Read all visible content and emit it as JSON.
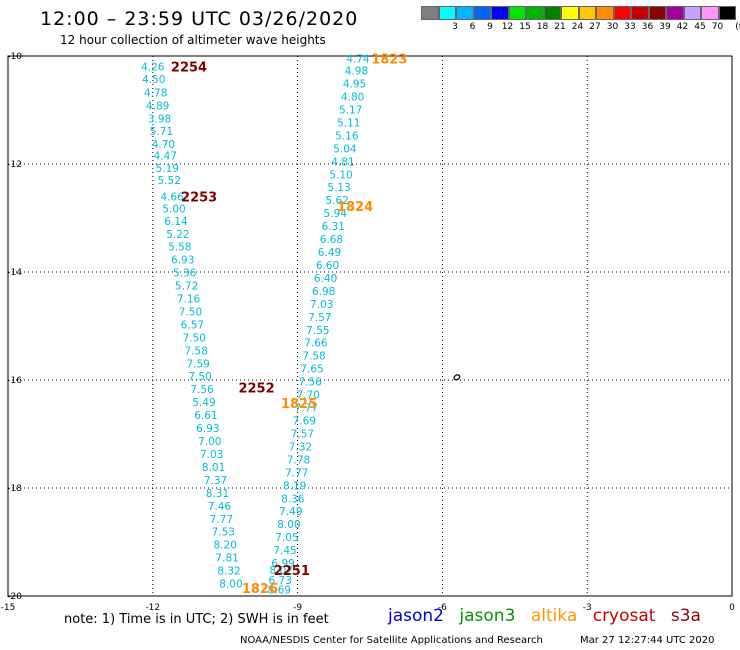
{
  "header": {
    "title": "12:00 – 23:59 UTC 03/26/2020",
    "subtitle": "12 hour collection of altimeter wave heights"
  },
  "legend": {
    "unit": "(ft)",
    "bins": [
      {
        "label": "",
        "color": "#7f7f7f"
      },
      {
        "label": "3",
        "color": "#00ffff"
      },
      {
        "label": "6",
        "color": "#00b4ff"
      },
      {
        "label": "9",
        "color": "#0064ff"
      },
      {
        "label": "12",
        "color": "#0000ff"
      },
      {
        "label": "15",
        "color": "#00e600"
      },
      {
        "label": "18",
        "color": "#00b400"
      },
      {
        "label": "21",
        "color": "#008200"
      },
      {
        "label": "24",
        "color": "#ffff00"
      },
      {
        "label": "27",
        "color": "#ffc800"
      },
      {
        "label": "30",
        "color": "#ff8c00"
      },
      {
        "label": "33",
        "color": "#ff0000"
      },
      {
        "label": "36",
        "color": "#c80000"
      },
      {
        "label": "39",
        "color": "#8b0000"
      },
      {
        "label": "42",
        "color": "#a000a0"
      },
      {
        "label": "45",
        "color": "#c8a0ff"
      },
      {
        "label": "70",
        "color": "#ff96ff"
      },
      {
        "label": "",
        "color": "#000000"
      }
    ]
  },
  "chart_data": {
    "type": "scatter",
    "xlim": [
      -15,
      0
    ],
    "ylim": [
      -20,
      -10
    ],
    "xticks": [
      "-15",
      "-12",
      "-9",
      "-6",
      "-3",
      "0"
    ],
    "yticks": [
      "-10",
      "-12",
      "-14",
      "-16",
      "-18",
      "-20"
    ],
    "grid": true,
    "value_color": "#00bcd4",
    "pass_colors": {
      "altika": "#ff8c00",
      "cryosat": "#800000"
    },
    "tracks": [
      {
        "name": "jason3-west",
        "points": [
          {
            "lon": -12.0,
            "lat": -10.19,
            "v": "4.26"
          },
          {
            "lon": -11.98,
            "lat": -10.43,
            "v": "4.50"
          },
          {
            "lon": -11.94,
            "lat": -10.68,
            "v": "4.78"
          },
          {
            "lon": -11.9,
            "lat": -10.92,
            "v": "4.89"
          },
          {
            "lon": -11.86,
            "lat": -11.16,
            "v": "3.98"
          },
          {
            "lon": -11.82,
            "lat": -11.39,
            "v": "5.71"
          },
          {
            "lon": -11.78,
            "lat": -11.63,
            "v": "4.70"
          },
          {
            "lon": -11.74,
            "lat": -11.84,
            "v": "4.47"
          },
          {
            "lon": -11.7,
            "lat": -12.07,
            "v": "5.19"
          },
          {
            "lon": -11.66,
            "lat": -12.3,
            "v": "5.52"
          },
          {
            "lon": -11.6,
            "lat": -12.6,
            "v": "4.66"
          },
          {
            "lon": -11.56,
            "lat": -12.82,
            "v": "5.00"
          },
          {
            "lon": -11.52,
            "lat": -13.06,
            "v": "6.14"
          },
          {
            "lon": -11.48,
            "lat": -13.3,
            "v": "5.22"
          },
          {
            "lon": -11.44,
            "lat": -13.53,
            "v": "5.58"
          },
          {
            "lon": -11.38,
            "lat": -13.77,
            "v": "6.93"
          },
          {
            "lon": -11.34,
            "lat": -14.01,
            "v": "5.36"
          },
          {
            "lon": -11.3,
            "lat": -14.25,
            "v": "5.72"
          },
          {
            "lon": -11.26,
            "lat": -14.49,
            "v": "7.16"
          },
          {
            "lon": -11.22,
            "lat": -14.73,
            "v": "7.50"
          },
          {
            "lon": -11.18,
            "lat": -14.97,
            "v": "6.57"
          },
          {
            "lon": -11.14,
            "lat": -15.21,
            "v": "7.50"
          },
          {
            "lon": -11.1,
            "lat": -15.45,
            "v": "7.58"
          },
          {
            "lon": -11.06,
            "lat": -15.69,
            "v": "7.59"
          },
          {
            "lon": -11.02,
            "lat": -15.93,
            "v": "7.50"
          },
          {
            "lon": -10.98,
            "lat": -16.17,
            "v": "7.56"
          },
          {
            "lon": -10.94,
            "lat": -16.41,
            "v": "5.49"
          },
          {
            "lon": -10.9,
            "lat": -16.65,
            "v": "6.61"
          },
          {
            "lon": -10.86,
            "lat": -16.89,
            "v": "6.93"
          },
          {
            "lon": -10.82,
            "lat": -17.13,
            "v": "7.00"
          },
          {
            "lon": -10.78,
            "lat": -17.37,
            "v": "7.03"
          },
          {
            "lon": -10.74,
            "lat": -17.61,
            "v": "8.01"
          },
          {
            "lon": -10.7,
            "lat": -17.85,
            "v": "7.37"
          },
          {
            "lon": -10.66,
            "lat": -18.09,
            "v": "8.31"
          },
          {
            "lon": -10.62,
            "lat": -18.33,
            "v": "7.46"
          },
          {
            "lon": -10.58,
            "lat": -18.57,
            "v": "7.77"
          },
          {
            "lon": -10.54,
            "lat": -18.81,
            "v": "7.53"
          },
          {
            "lon": -10.5,
            "lat": -19.05,
            "v": "8.20"
          },
          {
            "lon": -10.46,
            "lat": -19.29,
            "v": "7.81"
          },
          {
            "lon": -10.42,
            "lat": -19.53,
            "v": "8.32"
          },
          {
            "lon": -10.38,
            "lat": -19.77,
            "v": "8.00"
          }
        ]
      },
      {
        "name": "jason3-east",
        "points": [
          {
            "lon": -7.75,
            "lat": -10.05,
            "v": "4.74"
          },
          {
            "lon": -7.78,
            "lat": -10.27,
            "v": "4.98"
          },
          {
            "lon": -7.82,
            "lat": -10.51,
            "v": "4.95"
          },
          {
            "lon": -7.86,
            "lat": -10.75,
            "v": "4.80"
          },
          {
            "lon": -7.9,
            "lat": -10.99,
            "v": "5.17"
          },
          {
            "lon": -7.94,
            "lat": -11.23,
            "v": "5.11"
          },
          {
            "lon": -7.98,
            "lat": -11.47,
            "v": "5.16"
          },
          {
            "lon": -8.02,
            "lat": -11.71,
            "v": "5.04"
          },
          {
            "lon": -8.06,
            "lat": -11.95,
            "v": "4.81"
          },
          {
            "lon": -8.1,
            "lat": -12.19,
            "v": "5.10"
          },
          {
            "lon": -8.14,
            "lat": -12.43,
            "v": "5.13"
          },
          {
            "lon": -8.18,
            "lat": -12.67,
            "v": "5.62"
          },
          {
            "lon": -8.22,
            "lat": -12.91,
            "v": "5.94"
          },
          {
            "lon": -8.26,
            "lat": -13.15,
            "v": "6.31"
          },
          {
            "lon": -8.3,
            "lat": -13.39,
            "v": "6.68"
          },
          {
            "lon": -8.34,
            "lat": -13.63,
            "v": "6.49"
          },
          {
            "lon": -8.38,
            "lat": -13.87,
            "v": "6.60"
          },
          {
            "lon": -8.42,
            "lat": -14.11,
            "v": "6.40"
          },
          {
            "lon": -8.46,
            "lat": -14.35,
            "v": "6.98"
          },
          {
            "lon": -8.5,
            "lat": -14.59,
            "v": "7.03"
          },
          {
            "lon": -8.54,
            "lat": -14.83,
            "v": "7.57"
          },
          {
            "lon": -8.58,
            "lat": -15.07,
            "v": "7.55"
          },
          {
            "lon": -8.62,
            "lat": -15.31,
            "v": "7.66"
          },
          {
            "lon": -8.66,
            "lat": -15.55,
            "v": "7.58"
          },
          {
            "lon": -8.7,
            "lat": -15.79,
            "v": "7.65"
          },
          {
            "lon": -8.74,
            "lat": -16.03,
            "v": "7.56"
          },
          {
            "lon": -8.78,
            "lat": -16.27,
            "v": "7.70"
          },
          {
            "lon": -8.82,
            "lat": -16.51,
            "v": "7.77"
          },
          {
            "lon": -8.86,
            "lat": -16.75,
            "v": "7.69"
          },
          {
            "lon": -8.9,
            "lat": -16.99,
            "v": "7.57"
          },
          {
            "lon": -8.94,
            "lat": -17.23,
            "v": "7.32"
          },
          {
            "lon": -8.98,
            "lat": -17.47,
            "v": "7.78"
          },
          {
            "lon": -9.02,
            "lat": -17.71,
            "v": "7.77"
          },
          {
            "lon": -9.06,
            "lat": -17.95,
            "v": "8.19"
          },
          {
            "lon": -9.1,
            "lat": -18.19,
            "v": "8.36"
          },
          {
            "lon": -9.14,
            "lat": -18.43,
            "v": "7.49"
          },
          {
            "lon": -9.18,
            "lat": -18.67,
            "v": "8.00"
          },
          {
            "lon": -9.22,
            "lat": -18.91,
            "v": "7.05"
          },
          {
            "lon": -9.26,
            "lat": -19.15,
            "v": "7.45"
          },
          {
            "lon": -9.3,
            "lat": -19.39,
            "v": "6.99"
          },
          {
            "lon": -9.34,
            "lat": -19.52,
            "v": "8.02"
          },
          {
            "lon": -9.36,
            "lat": -19.7,
            "v": "6.73"
          },
          {
            "lon": -9.38,
            "lat": -19.88,
            "v": "8.69"
          }
        ]
      }
    ],
    "pass_times": [
      {
        "text": "2254",
        "sat": "cryosat",
        "lon": -11.25,
        "lat": -10.19
      },
      {
        "text": "2253",
        "sat": "cryosat",
        "lon": -11.04,
        "lat": -12.6
      },
      {
        "text": "2252",
        "sat": "cryosat",
        "lon": -9.85,
        "lat": -16.14
      },
      {
        "text": "2251",
        "sat": "cryosat",
        "lon": -9.12,
        "lat": -19.52
      },
      {
        "text": "1823",
        "sat": "altika",
        "lon": -7.1,
        "lat": -10.05
      },
      {
        "text": "1824",
        "sat": "altika",
        "lon": -7.81,
        "lat": -12.78
      },
      {
        "text": "1825",
        "sat": "altika",
        "lon": -8.97,
        "lat": -16.43
      },
      {
        "text": "1826",
        "sat": "altika",
        "lon": -9.78,
        "lat": -19.85
      }
    ],
    "island_marker": {
      "lon": -5.7,
      "lat": -15.95
    }
  },
  "notes": {
    "note_text": "note: 1) Time is in UTC; 2) SWH is in feet",
    "satellites": [
      {
        "name": "jason2",
        "color": "#0000dd"
      },
      {
        "name": "jason3",
        "color": "#009900"
      },
      {
        "name": "altika",
        "color": "#ff9900"
      },
      {
        "name": "cryosat",
        "color": "#cc0000"
      },
      {
        "name": "s3a",
        "color": "#990000"
      }
    ],
    "credit": "NOAA/NESDIS Center for Satellite Applications and Research",
    "timestamp": "Mar 27 12:27:44 UTC 2020"
  }
}
